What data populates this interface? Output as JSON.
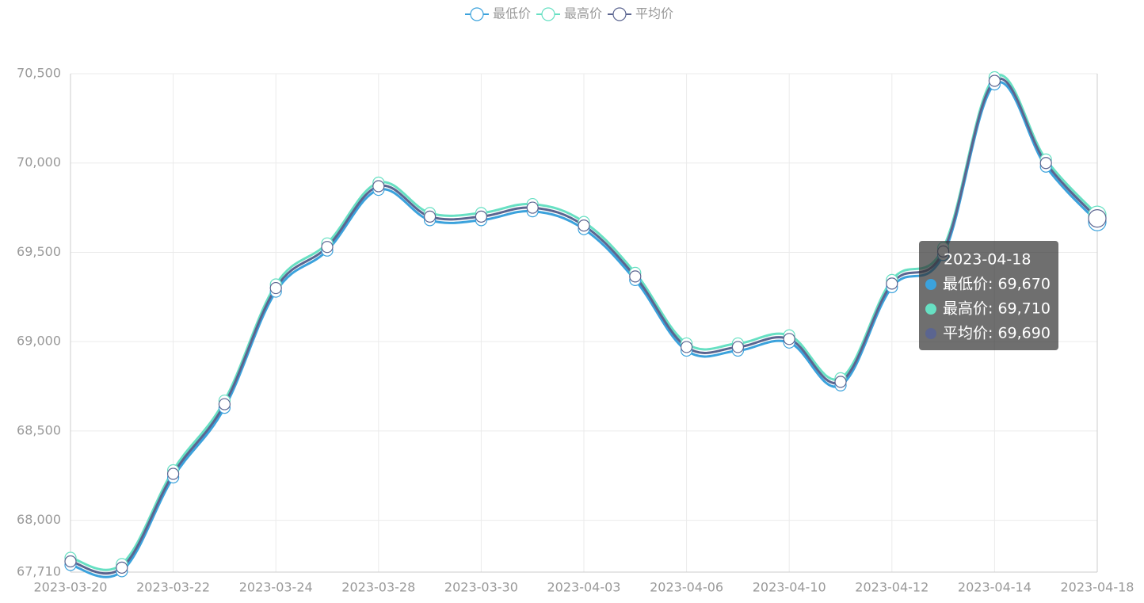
{
  "chart_data": {
    "type": "line",
    "categories": [
      "2023-03-20",
      null,
      "2023-03-22",
      null,
      "2023-03-24",
      null,
      "2023-03-28",
      null,
      "2023-03-30",
      null,
      "2023-04-03",
      null,
      "2023-04-06",
      null,
      "2023-04-10",
      null,
      "2023-04-12",
      null,
      "2023-04-14",
      null,
      "2023-04-18"
    ],
    "series": [
      {
        "name": "最低价",
        "color": "#3ba2dc",
        "values": [
          67750,
          67715,
          68240,
          68630,
          69280,
          69510,
          69850,
          69680,
          69680,
          69730,
          69630,
          69345,
          68950,
          68950,
          68995,
          68755,
          69305,
          69485,
          70440,
          69980,
          69670
        ]
      },
      {
        "name": "最高价",
        "color": "#67e0c3",
        "values": [
          67790,
          67755,
          68280,
          68670,
          69320,
          69550,
          69890,
          69720,
          69720,
          69770,
          69670,
          69385,
          68990,
          68990,
          69035,
          68795,
          69345,
          69525,
          70480,
          70020,
          69710
        ]
      },
      {
        "name": "平均价",
        "color": "#5b6590",
        "values": [
          67770,
          67735,
          68260,
          68650,
          69300,
          69530,
          69870,
          69700,
          69700,
          69750,
          69650,
          69365,
          68970,
          68970,
          69015,
          68775,
          69325,
          69505,
          70460,
          70000,
          69690
        ]
      }
    ],
    "ylim": [
      67710,
      70500
    ],
    "yticks": [
      {
        "value": 67710,
        "label": "67,710"
      },
      {
        "value": 68000,
        "label": "68,000"
      },
      {
        "value": 68500,
        "label": "68,500"
      },
      {
        "value": 69000,
        "label": "69,000"
      },
      {
        "value": 69500,
        "label": "69,500"
      },
      {
        "value": 70000,
        "label": "70,000"
      },
      {
        "value": 70500,
        "label": "70,500"
      }
    ],
    "grid": true,
    "legend": "top",
    "tooltip": {
      "title": "2023-04-18",
      "lines": [
        "最低价: 69,670",
        "最高价: 69,710",
        "平均价: 69,690"
      ]
    }
  }
}
